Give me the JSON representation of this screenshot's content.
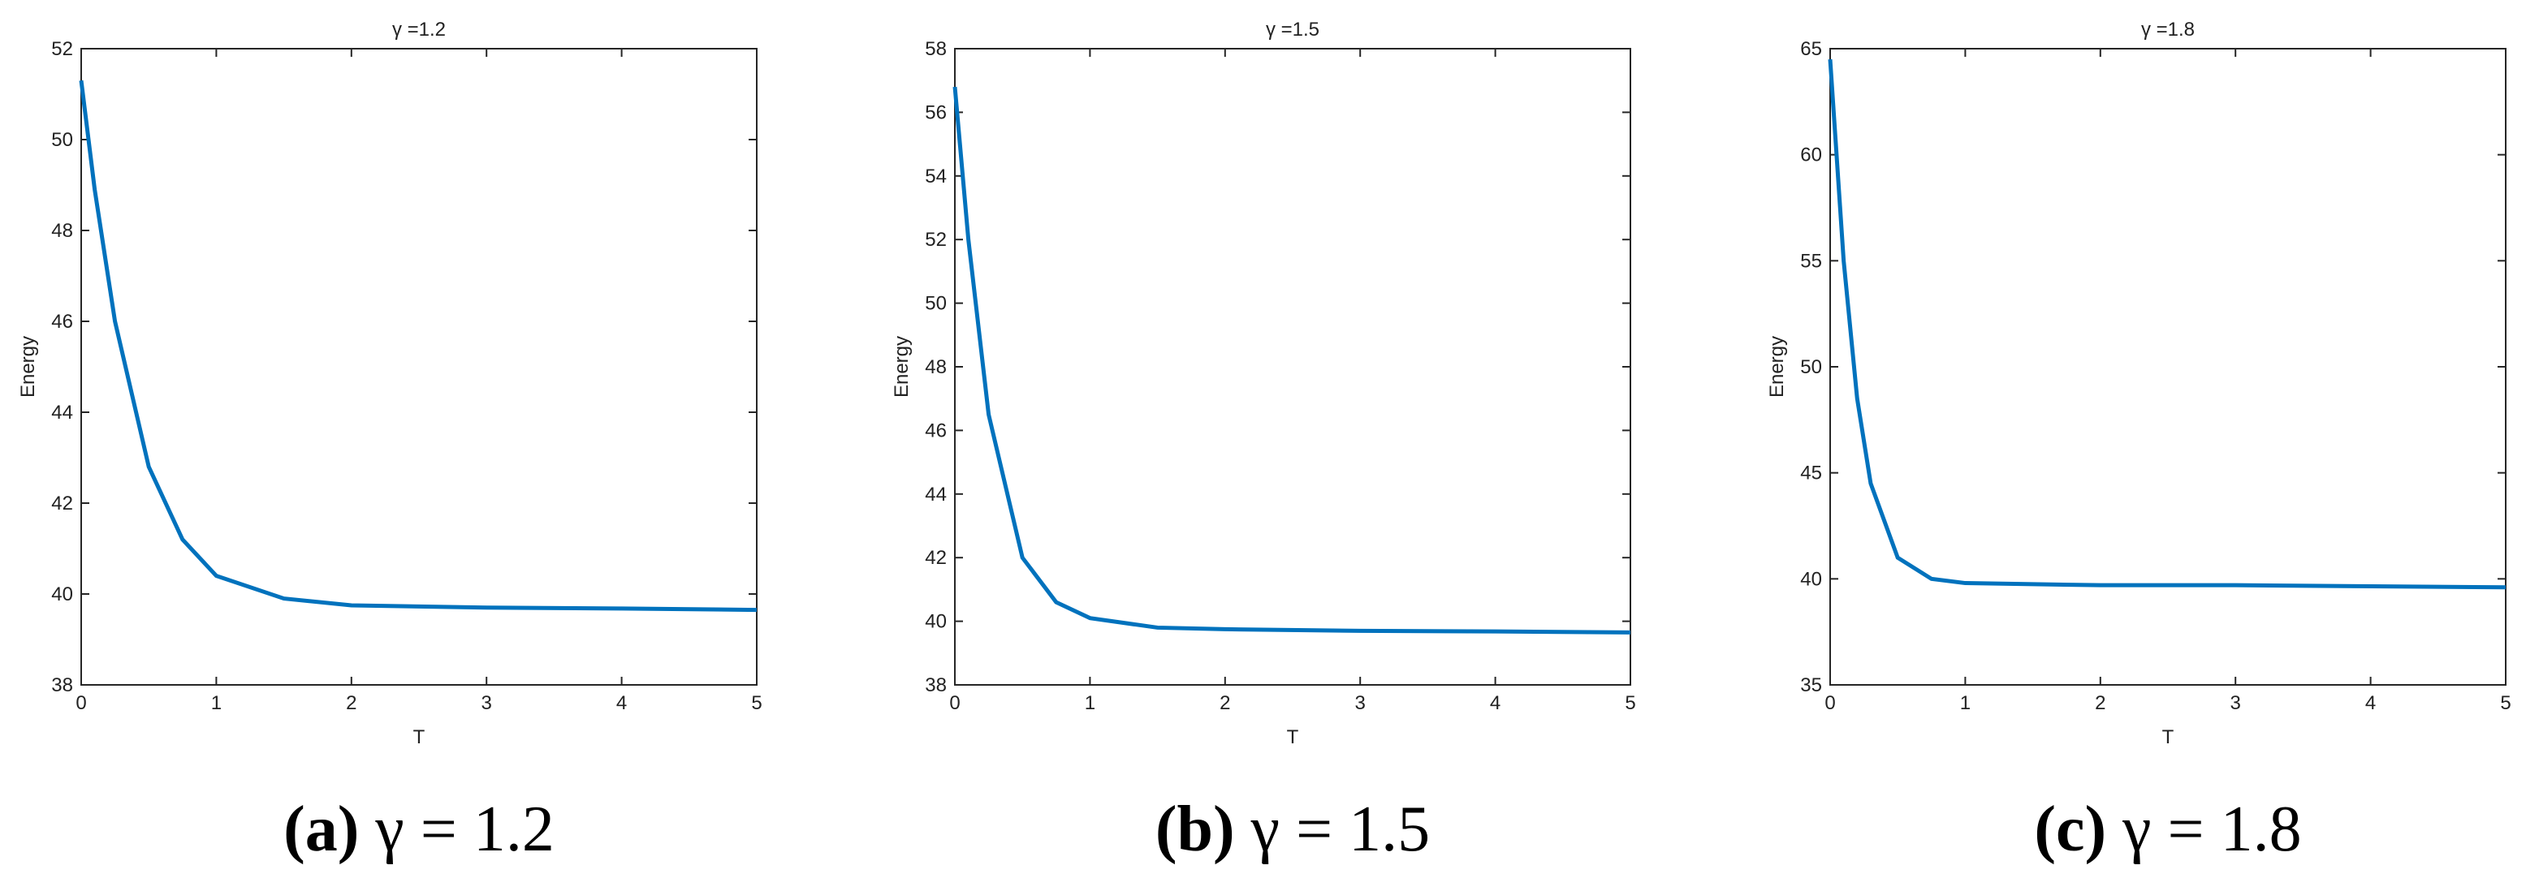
{
  "chart_data": [
    {
      "type": "line",
      "title": "γ =1.2",
      "xlabel": "T",
      "ylabel": "Energy",
      "caption_label": "(a)",
      "caption": "γ = 1.2",
      "x": [
        0,
        0.1,
        0.25,
        0.5,
        0.75,
        1,
        1.5,
        2,
        3,
        4,
        5
      ],
      "series": [
        {
          "color": "#0072bd",
          "values": [
            51.3,
            48.9,
            46.0,
            42.8,
            41.2,
            40.4,
            39.9,
            39.75,
            39.7,
            39.68,
            39.65
          ]
        }
      ],
      "xlim": [
        0,
        5
      ],
      "ylim": [
        38,
        52
      ],
      "xticks": [
        0,
        1,
        2,
        3,
        4,
        5
      ],
      "yticks": [
        38,
        40,
        42,
        44,
        46,
        48,
        50,
        52
      ]
    },
    {
      "type": "line",
      "title": "γ =1.5",
      "xlabel": "T",
      "ylabel": "Energy",
      "caption_label": "(b)",
      "caption": "γ = 1.5",
      "x": [
        0,
        0.1,
        0.25,
        0.5,
        0.75,
        1,
        1.5,
        2,
        3,
        4,
        5
      ],
      "series": [
        {
          "color": "#0072bd",
          "values": [
            56.8,
            52.0,
            46.5,
            42.0,
            40.6,
            40.1,
            39.8,
            39.75,
            39.7,
            39.68,
            39.65
          ]
        }
      ],
      "xlim": [
        0,
        5
      ],
      "ylim": [
        38,
        58
      ],
      "xticks": [
        0,
        1,
        2,
        3,
        4,
        5
      ],
      "yticks": [
        38,
        40,
        42,
        44,
        46,
        48,
        50,
        52,
        54,
        56,
        58
      ]
    },
    {
      "type": "line",
      "title": "γ =1.8",
      "xlabel": "T",
      "ylabel": "Energy",
      "caption_label": "(c)",
      "caption": "γ = 1.8",
      "x": [
        0,
        0.1,
        0.2,
        0.3,
        0.5,
        0.75,
        1,
        2,
        3,
        4,
        5
      ],
      "series": [
        {
          "color": "#0072bd",
          "values": [
            64.5,
            55.0,
            48.5,
            44.5,
            41.0,
            40.0,
            39.8,
            39.7,
            39.7,
            39.65,
            39.6
          ]
        }
      ],
      "xlim": [
        0,
        5
      ],
      "ylim": [
        35,
        65
      ],
      "xticks": [
        0,
        1,
        2,
        3,
        4,
        5
      ],
      "yticks": [
        35,
        40,
        45,
        50,
        55,
        60,
        65
      ]
    }
  ]
}
